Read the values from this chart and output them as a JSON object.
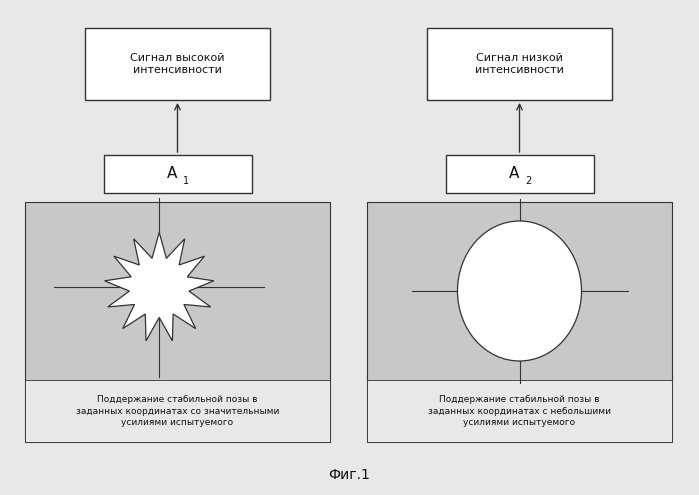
{
  "fig_background": "#e8e8e8",
  "title": "Фиг.1",
  "title_fontsize": 10,
  "box1_label": "Сигнал высокой\nинтенсивности",
  "box2_label": "Сигнал низкой\nинтенсивности",
  "a1_label": "A",
  "a1_sub": "1",
  "a2_label": "A",
  "a2_sub": "2",
  "caption1": "Поддержание стабильной позы в\nзаданных координатах со значительными\nусилиями испытуемого",
  "caption2": "Поддержание стабильной позы в\nзаданных координатах с небольшими\nусилиями испытуемого",
  "panel_bg": "#c8c8c8",
  "box_fc": "#ffffff",
  "box_ec": "#333333",
  "caption_bg": "#e8e8e8",
  "font_size_box": 8,
  "font_size_caption": 6.5,
  "font_size_a": 11
}
